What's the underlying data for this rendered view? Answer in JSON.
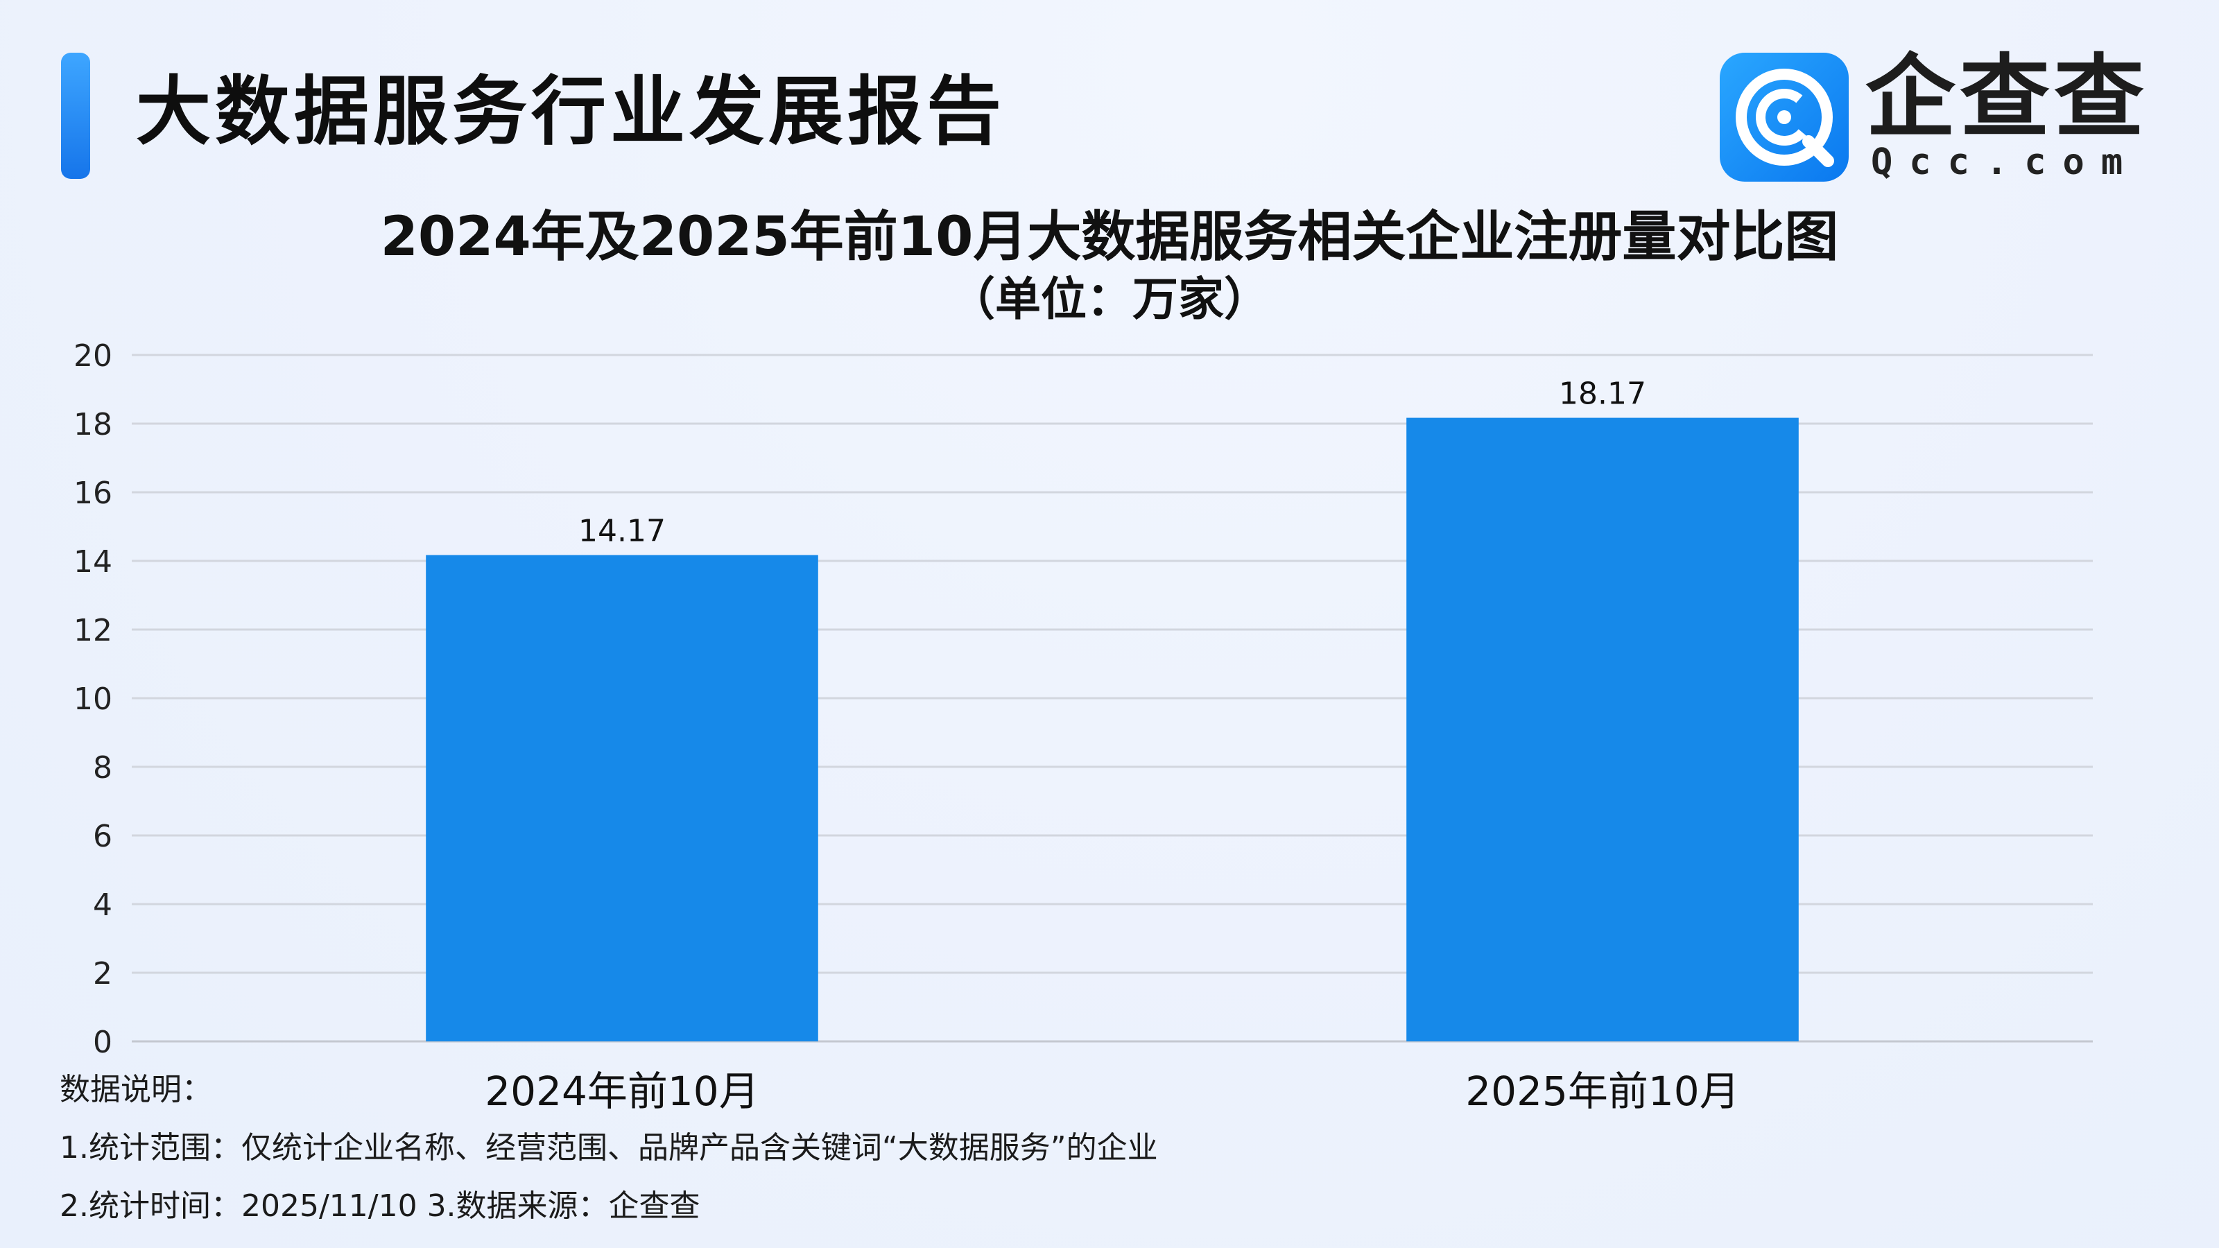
{
  "header": {
    "title": "大数据服务行业发展报告"
  },
  "logo": {
    "name": "企查查",
    "url": "Qcc.com",
    "icon": "qcc-logo-icon",
    "colors": {
      "badge": "#1687f5",
      "badge_light": "#2aa7ff"
    }
  },
  "chart_data": {
    "type": "bar",
    "title": "2024年及2025年前10月大数据服务相关企业注册量对比图",
    "subtitle": "（单位：万家）",
    "categories": [
      "2024年前10月",
      "2025年前10月"
    ],
    "values": [
      14.17,
      18.17
    ],
    "data_labels": [
      "14.17",
      "18.17"
    ],
    "ylim": [
      0,
      20
    ],
    "yticks": [
      0,
      2,
      4,
      6,
      8,
      10,
      12,
      14,
      16,
      18,
      20
    ],
    "grid": true,
    "legend": "none",
    "bar_color": "#1689e9"
  },
  "notes": {
    "heading": "数据说明：",
    "line1": "1.统计范围：仅统计企业名称、经营范围、品牌产品含关键词“大数据服务”的企业",
    "line2": " 2.统计时间：2025/11/10  3.数据来源：企查查"
  }
}
